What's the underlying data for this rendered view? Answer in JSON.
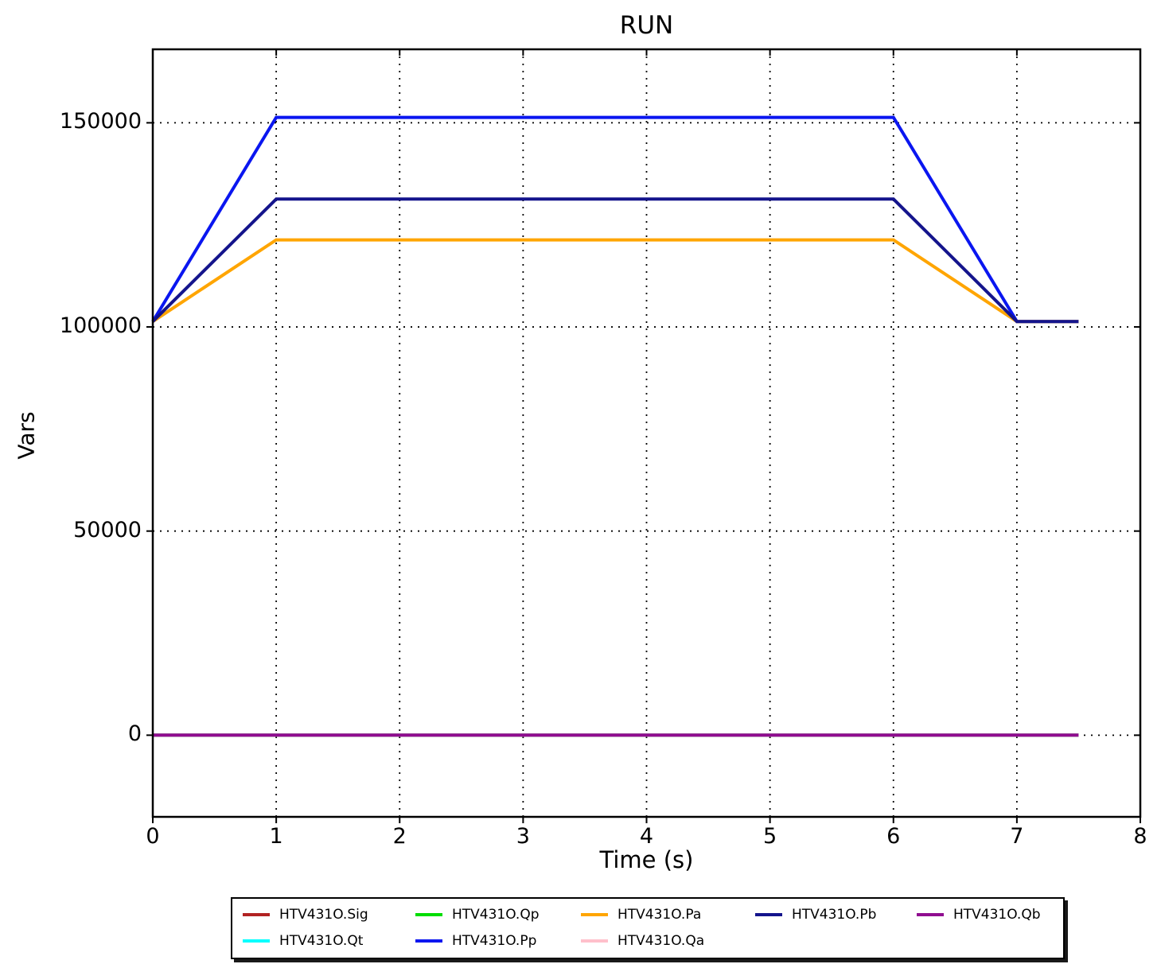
{
  "title": "RUN",
  "axes": {
    "xlabel": "Time (s)",
    "ylabel": "Vars",
    "x_tick_labels": [
      "0",
      "1",
      "2",
      "3",
      "4",
      "5",
      "6",
      "7",
      "8"
    ],
    "y_tick_labels": [
      "0",
      "50000",
      "100000",
      "150000"
    ]
  },
  "chart_data": {
    "type": "line",
    "title": "RUN",
    "xlabel": "Time (s)",
    "ylabel": "Vars",
    "xlim": [
      0,
      8
    ],
    "ylim": [
      -20000,
      168000
    ],
    "x_ticks": [
      0,
      1,
      2,
      3,
      4,
      5,
      6,
      7,
      8
    ],
    "y_ticks": [
      0,
      50000,
      100000,
      150000
    ],
    "grid": "dotted",
    "legend_position": "below-chart",
    "series": [
      {
        "name": "HTV431O.Sig",
        "color": "#b22222",
        "points": [
          [
            0,
            0
          ],
          [
            7.5,
            0
          ]
        ]
      },
      {
        "name": "HTV431O.Qt",
        "color": "#00ffff",
        "points": [
          [
            0,
            0
          ],
          [
            7.5,
            0
          ]
        ]
      },
      {
        "name": "HTV431O.Qp",
        "color": "#00dd00",
        "points": [
          [
            0,
            0
          ],
          [
            7.5,
            0
          ]
        ]
      },
      {
        "name": "HTV431O.Pp",
        "color": "#0a16f0",
        "points": [
          [
            0,
            101325
          ],
          [
            1,
            151325
          ],
          [
            6,
            151325
          ],
          [
            7,
            101325
          ],
          [
            7.5,
            101325
          ]
        ]
      },
      {
        "name": "HTV431O.Pa",
        "color": "#ffa500",
        "points": [
          [
            0,
            101325
          ],
          [
            1,
            121325
          ],
          [
            6,
            121325
          ],
          [
            7,
            101325
          ],
          [
            7.5,
            101325
          ]
        ]
      },
      {
        "name": "HTV431O.Qa",
        "color": "#ffc0cb",
        "points": [
          [
            0,
            0
          ],
          [
            7.5,
            0
          ]
        ]
      },
      {
        "name": "HTV431O.Pb",
        "color": "#14148c",
        "points": [
          [
            0,
            101325
          ],
          [
            1,
            131325
          ],
          [
            6,
            131325
          ],
          [
            7,
            101325
          ],
          [
            7.5,
            101325
          ]
        ]
      },
      {
        "name": "HTV431O.Qb",
        "color": "#900d90",
        "points": [
          [
            0,
            0
          ],
          [
            7.5,
            0
          ]
        ]
      }
    ]
  },
  "legend": {
    "entries": [
      {
        "label": "HTV431O.Sig",
        "color": "#b22222",
        "col": 0,
        "row": 0
      },
      {
        "label": "HTV431O.Qt",
        "color": "#00ffff",
        "col": 0,
        "row": 1
      },
      {
        "label": "HTV431O.Qp",
        "color": "#00dd00",
        "col": 1,
        "row": 0
      },
      {
        "label": "HTV431O.Pp",
        "color": "#0a16f0",
        "col": 1,
        "row": 1
      },
      {
        "label": "HTV431O.Pa",
        "color": "#ffa500",
        "col": 2,
        "row": 0
      },
      {
        "label": "HTV431O.Qa",
        "color": "#ffc0cb",
        "col": 2,
        "row": 1
      },
      {
        "label": "HTV431O.Pb",
        "color": "#14148c",
        "col": 3,
        "row": 0
      },
      {
        "label": "HTV431O.Qb",
        "color": "#900d90",
        "col": 4,
        "row": 0
      }
    ]
  }
}
